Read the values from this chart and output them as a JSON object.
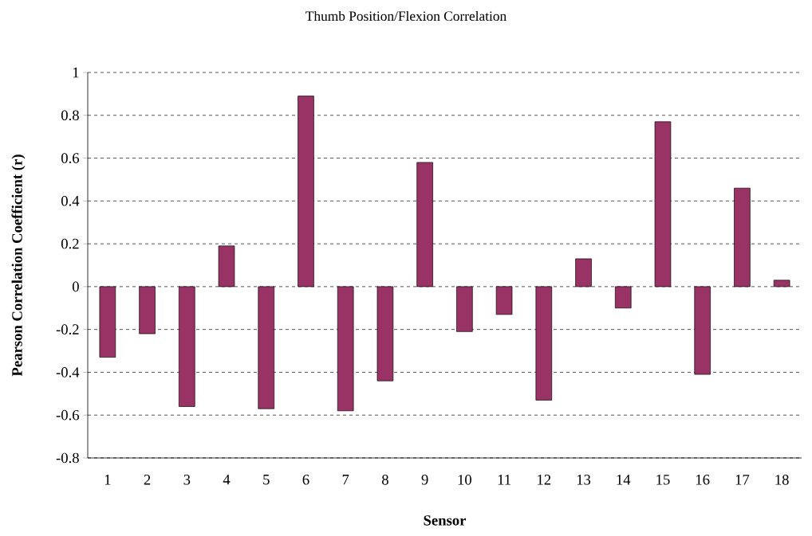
{
  "chart_data": {
    "type": "bar",
    "title": "Thumb Position/Flexion Correlation",
    "xlabel": "Sensor",
    "ylabel": "Pearson Correlation Coefficient (r)",
    "categories": [
      "1",
      "2",
      "3",
      "4",
      "5",
      "6",
      "7",
      "8",
      "9",
      "10",
      "11",
      "12",
      "13",
      "14",
      "15",
      "16",
      "17",
      "18"
    ],
    "values": [
      -0.33,
      -0.22,
      -0.56,
      0.19,
      -0.57,
      0.89,
      -0.58,
      -0.44,
      0.58,
      -0.21,
      -0.13,
      -0.53,
      0.13,
      -0.1,
      0.77,
      -0.41,
      0.46,
      0.03
    ],
    "color": "#993366",
    "ylim": [
      -0.8,
      1
    ],
    "yticks": [
      -0.8,
      -0.6,
      -0.4,
      -0.2,
      0,
      0.2,
      0.4,
      0.6,
      0.8,
      1
    ],
    "grid": "y"
  }
}
